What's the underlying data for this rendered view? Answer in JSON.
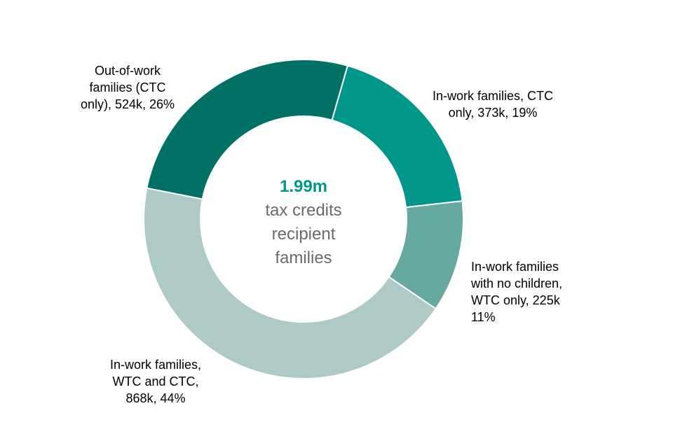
{
  "chart_data": {
    "type": "pie",
    "donut": true,
    "center": {
      "value": "1.99m",
      "lines": [
        "tax credits",
        "recipient",
        "families"
      ]
    },
    "slices": [
      {
        "label_lines": [
          "In-work families, CTC",
          "only, 373k, 19%"
        ],
        "value": 373,
        "percent": 19,
        "color": "#00968a"
      },
      {
        "label_lines": [
          "In-work families",
          "with no children,",
          "WTC only, 225k",
          "11%"
        ],
        "value": 225,
        "percent": 11,
        "color": "#66a9a1"
      },
      {
        "label_lines": [
          "In-work families,",
          "WTC and CTC,",
          "868k, 44%"
        ],
        "value": 868,
        "percent": 44,
        "color": "#aecac6"
      },
      {
        "label_lines": [
          "Out-of-work",
          "families (CTC",
          "only), 524k, 26%"
        ],
        "value": 524,
        "percent": 26,
        "color": "#017166"
      }
    ],
    "start_angle_deg": 16,
    "direction": "clockwise",
    "colors": {
      "center_value": "#00968a",
      "center_text": "#6b6b6b",
      "separator": "#ffffff"
    }
  }
}
